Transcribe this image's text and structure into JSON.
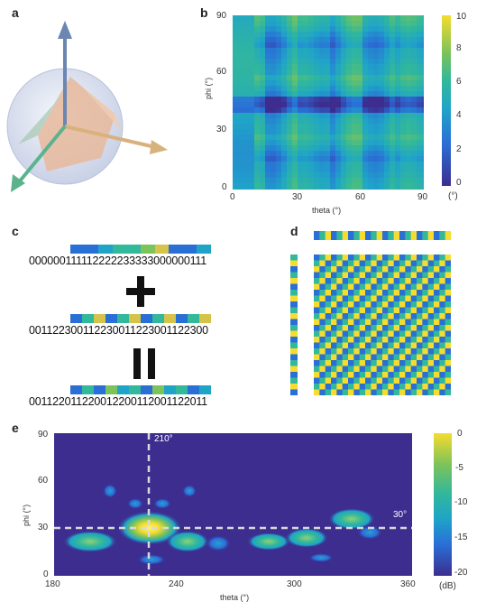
{
  "panel_labels": {
    "a": "a",
    "b": "b",
    "c": "c",
    "d": "d",
    "e": "e"
  },
  "colors": {
    "deep_blue": "#3c2d8f",
    "blue": "#2a6fd6",
    "cyan": "#1fa4c8",
    "teal": "#32b89a",
    "green": "#7cc35a",
    "yellow": "#f5dc2e",
    "bright": "#fff56e",
    "peach": "#e7c2a6",
    "sphere": "#dfe5f2"
  },
  "panel_a": {
    "description_icon": "sphere-with-axes-icon"
  },
  "panel_b": {
    "ytick": [
      "90",
      "60",
      "30",
      "0"
    ],
    "xtick": [
      "0",
      "30",
      "60",
      "90"
    ],
    "ylabel": "phi (°)",
    "xlabel": "theta (°)",
    "colorbar": {
      "ticks": [
        "10",
        "8",
        "6",
        "4",
        "2",
        "0"
      ],
      "unit": "(°)"
    }
  },
  "panel_c": {
    "seq1": "000000111112222233333000000111",
    "plus": "+",
    "seq2": "001122300112230011223001122300",
    "equals": "=",
    "seq3": "001122011220012200112001122011"
  },
  "panel_e": {
    "ytick": [
      "90",
      "60",
      "30",
      "0"
    ],
    "xtick": [
      "180",
      "240",
      "300",
      "360"
    ],
    "ylabel": "phi (°)",
    "xlabel": "theta (°)",
    "theta_marker": "210°",
    "phi_marker": "30°",
    "colorbar": {
      "ticks": [
        "0",
        "-5",
        "-10",
        "-15",
        "-20"
      ],
      "unit": "(dB)"
    }
  }
}
